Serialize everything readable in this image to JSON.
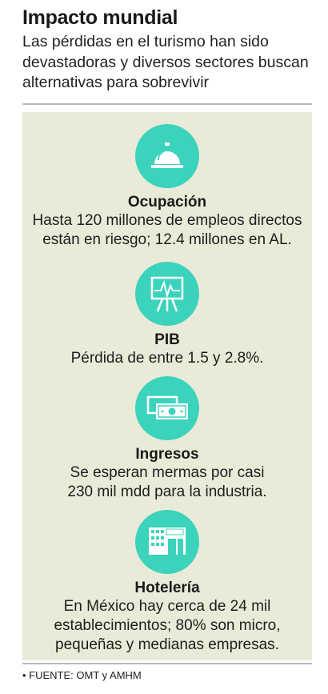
{
  "header": {
    "title": "Impacto mundial",
    "subtitle": "Las pérdidas en el turismo han sido devastadoras y diversos sectores buscan alternativas para sobrevivir"
  },
  "colors": {
    "accent": "#3cd3bd",
    "panel": "#e9ebd8"
  },
  "items": [
    {
      "icon": "service-bell-icon",
      "title": "Ocupación",
      "text": "Hasta 120 millones de empleos directos\nestán en riesgo; 12.4 millones en AL."
    },
    {
      "icon": "easel-chart-icon",
      "title": "PIB",
      "text": "Pérdida de entre 1.5 y 2.8%."
    },
    {
      "icon": "banknotes-icon",
      "title": "Ingresos",
      "text": "Se esperan mermas por casi\n230 mil mdd para la industria."
    },
    {
      "icon": "hotel-building-icon",
      "title": "Hotelería",
      "text": "En México hay cerca de 24 mil\nestablecimientos; 80% son micro,\npequeñas y medianas empresas."
    }
  ],
  "source": "• FUENTE: OMT y AMHM"
}
